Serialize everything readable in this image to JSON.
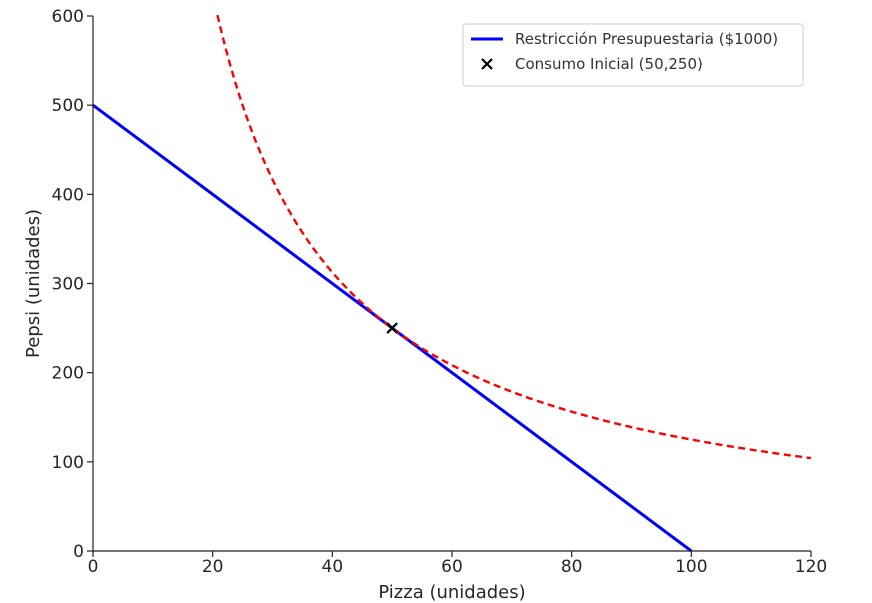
{
  "chart_data": {
    "type": "line",
    "title": "",
    "xlabel": "Pizza (unidades)",
    "ylabel": "Pepsi (unidades)",
    "xlim": [
      0,
      120
    ],
    "ylim": [
      0,
      600
    ],
    "xticks": [
      0,
      20,
      40,
      60,
      80,
      100,
      120
    ],
    "yticks": [
      0,
      100,
      200,
      300,
      400,
      500,
      600
    ],
    "grid": false,
    "legend_position": "top-right",
    "series": [
      {
        "name": "Restricción Presupuestaria ($1000)",
        "kind": "line",
        "style": "solid",
        "color": "#0000ff",
        "points": [
          [
            0,
            500
          ],
          [
            100,
            0
          ]
        ]
      },
      {
        "name": "",
        "kind": "line",
        "style": "dashed",
        "color": "#ff0000",
        "equation": "x*y=12500",
        "x_range": [
          20.8,
          120
        ]
      },
      {
        "name": "Consumo Inicial (50,250)",
        "kind": "marker",
        "marker": "x",
        "color": "#000000",
        "points": [
          [
            50,
            250
          ]
        ]
      }
    ]
  }
}
